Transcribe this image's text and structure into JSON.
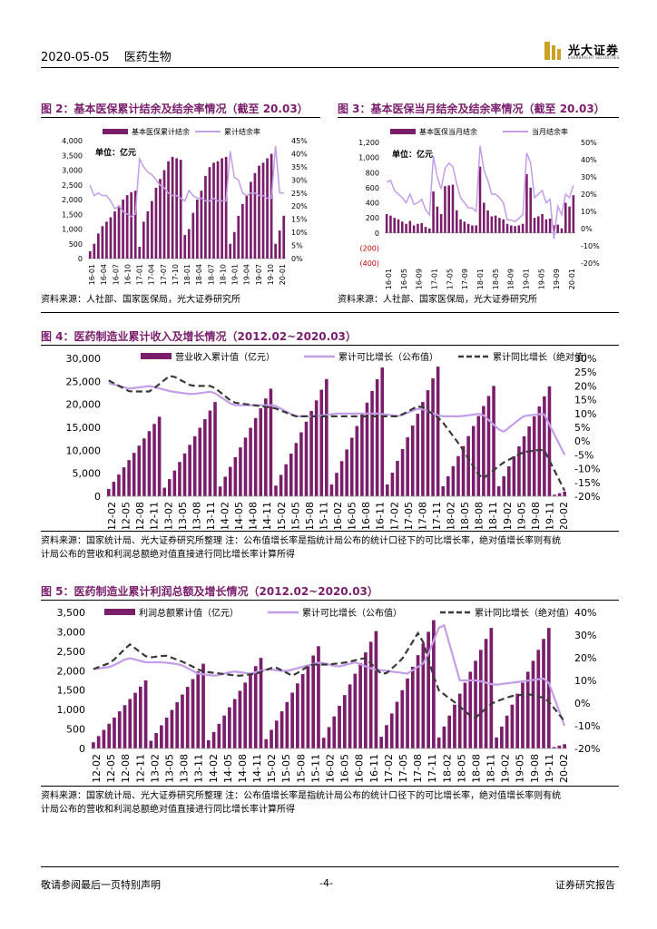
{
  "header": {
    "date": "2020-05-05",
    "sector": "医药生物"
  },
  "logo": {
    "name": "光大证券",
    "sub": "EVERBRIGHT SECURITIES"
  },
  "colors": {
    "bar": "#7a1e6c",
    "line1": "#c49ee8",
    "line2": "#3a3a3a",
    "title": "#7a1e6c"
  },
  "fig2": {
    "title": "图 2：基本医保累计结余及结余率情况（截至 20.03）",
    "legend": [
      "基本医保累计结余",
      "累计结余率"
    ],
    "unit": "单位：亿元",
    "source": "资料来源：人社部、国家医保局，光大证券研究所",
    "chart_data": {
      "type": "bar",
      "title": "基本医保累计结余及结余率情况",
      "yleft_ticks": [
        "4,000",
        "3,500",
        "3,000",
        "2,500",
        "2,000",
        "1,500",
        "1,000",
        "500",
        "0"
      ],
      "yright_ticks": [
        "45%",
        "40%",
        "35%",
        "30%",
        "25%",
        "20%",
        "15%",
        "10%",
        "5%",
        "0%"
      ],
      "xticks": [
        "16-01",
        "16-04",
        "16-07",
        "16-10",
        "17-01",
        "17-04",
        "17-07",
        "17-10",
        "18-01",
        "18-04",
        "18-07",
        "18-10",
        "19-01",
        "19-04",
        "19-07",
        "19-10",
        "20-01"
      ],
      "ylim_left": [
        0,
        4000
      ],
      "ylim_right": [
        0,
        45
      ],
      "series": [
        {
          "name": "基本医保累计结余",
          "values": [
            250,
            500,
            850,
            1100,
            1250,
            1400,
            1600,
            1800,
            2000,
            2150,
            2250,
            2300,
            400,
            1250,
            1600,
            1950,
            2400,
            2700,
            3000,
            3300,
            3450,
            3400,
            3350,
            800,
            1000,
            1550,
            2000,
            2300,
            2800,
            3100,
            3250,
            3300,
            3400,
            3450,
            500,
            900,
            1450,
            1850,
            2150,
            2600,
            2900,
            3150,
            3250,
            3400,
            3550,
            500,
            950,
            1450
          ]
        },
        {
          "name": "累计结余率",
          "values": [
            28,
            24,
            25,
            24,
            24,
            22,
            19,
            20,
            18,
            17,
            16,
            17,
            38,
            35,
            33,
            32,
            30,
            28,
            27,
            25,
            24,
            24,
            23,
            22,
            26,
            24,
            23,
            23,
            22,
            22,
            23,
            22,
            22,
            22,
            41,
            31,
            30,
            25,
            24,
            25,
            25,
            24,
            24,
            23,
            23,
            43,
            25,
            25
          ]
        }
      ]
    }
  },
  "fig3": {
    "title": "图 3：基本医保当月结余及结余率情况（截至 20.03）",
    "legend": [
      "基本医保当月结余",
      "当月结余率"
    ],
    "unit": "单位：亿元",
    "source": "资料来源：人社部、国家医保局，光大证券研究所",
    "chart_data": {
      "type": "bar",
      "title": "基本医保当月结余及结余率情况",
      "yleft_ticks": [
        "1,200",
        "1,000",
        "800",
        "600",
        "400",
        "200",
        "0",
        "(200)",
        "(400)"
      ],
      "yright_ticks": [
        "50%",
        "40%",
        "30%",
        "20%",
        "10%",
        "0%",
        "-10%",
        "-20%"
      ],
      "xticks": [
        "16-01",
        "16-05",
        "16-09",
        "17-01",
        "17-05",
        "17-09",
        "18-01",
        "18-05",
        "18-09",
        "19-01",
        "19-05",
        "19-09",
        "20-01"
      ],
      "ylim_left": [
        -400,
        1200
      ],
      "ylim_right": [
        -20,
        50
      ],
      "series": [
        {
          "name": "基本医保当月结余",
          "values": [
            250,
            230,
            200,
            180,
            150,
            120,
            160,
            100,
            120,
            130,
            80,
            60,
            550,
            350,
            250,
            620,
            630,
            640,
            300,
            180,
            150,
            120,
            100,
            100,
            880,
            400,
            300,
            220,
            230,
            200,
            180,
            120,
            100,
            90,
            100,
            120,
            780,
            600,
            200,
            220,
            250,
            180,
            190,
            100,
            110,
            60,
            400,
            350,
            500
          ]
        },
        {
          "name": "当月结余率",
          "values": [
            27,
            28,
            22,
            20,
            18,
            15,
            20,
            14,
            15,
            17,
            11,
            8,
            42,
            30,
            23,
            35,
            38,
            36,
            26,
            18,
            15,
            12,
            12,
            10,
            48,
            34,
            28,
            20,
            20,
            18,
            15,
            5,
            5,
            4,
            6,
            8,
            44,
            38,
            18,
            20,
            22,
            15,
            17,
            -6,
            13,
            8,
            20,
            18,
            25
          ]
        }
      ]
    }
  },
  "fig4": {
    "title": "图 4：医药制造业累计收入及增长情况（2012.02~2020.03）",
    "legend": [
      "营业收入累计值（亿元）",
      "累计可比增长（公布值）",
      "累计同比增长（绝对值）"
    ],
    "source_lines": [
      "资料来源：国家统计局、光大证券研究所整理 注：公布值增长率是指统计局公布的统计口径下的可比增长率，绝对值增长率则有统",
      "计局公布的营收和利润总额绝对值直接进行同比增长率计算所得"
    ],
    "chart_data": {
      "type": "bar",
      "yleft_ticks": [
        "30,000",
        "25,000",
        "20,000",
        "15,000",
        "10,000",
        "5,000",
        "0"
      ],
      "yright_ticks": [
        "30%",
        "25%",
        "20%",
        "15%",
        "10%",
        "5%",
        "0%",
        "-5%",
        "-10%",
        "-15%",
        "-20%"
      ],
      "xticks": [
        "12-02",
        "12-05",
        "12-08",
        "12-11",
        "13-02",
        "13-05",
        "13-08",
        "13-11",
        "14-02",
        "14-05",
        "14-08",
        "14-11",
        "15-02",
        "15-05",
        "15-08",
        "15-11",
        "16-02",
        "16-05",
        "16-08",
        "16-11",
        "17-02",
        "17-05",
        "17-08",
        "17-11",
        "18-02",
        "18-05",
        "18-08",
        "18-11",
        "19-02",
        "19-05",
        "19-08",
        "19-11",
        "20-02"
      ],
      "ylim_left": [
        0,
        30000
      ],
      "ylim_right": [
        -20,
        30
      ]
    }
  },
  "fig5": {
    "title": "图 5：医药制造业累计利润总额及增长情况（2012.02~2020.03）",
    "legend": [
      "利润总额累计值（亿元）",
      "累计可比增长（公布值）",
      "累计同比增长（绝对值）"
    ],
    "source_lines": [
      "资料来源：国家统计局、光大证券研究所整理 注：公布值增长率是指统计局公布的统计口径下的可比增长率，绝对值增长率则有统",
      "计局公布的营收和利润总额绝对值直接进行同比增长率计算所得"
    ],
    "chart_data": {
      "type": "bar",
      "yleft_ticks": [
        "3,500",
        "3,000",
        "2,500",
        "2,000",
        "1,500",
        "1,000",
        "500",
        "0"
      ],
      "yright_ticks": [
        "40%",
        "30%",
        "20%",
        "10%",
        "0%",
        "-10%",
        "-20%"
      ],
      "xticks": [
        "12-02",
        "12-05",
        "12-08",
        "12-11",
        "13-02",
        "13-05",
        "13-08",
        "13-11",
        "14-02",
        "14-05",
        "14-08",
        "14-11",
        "15-02",
        "15-05",
        "15-08",
        "15-11",
        "16-02",
        "16-05",
        "16-08",
        "16-11",
        "17-02",
        "17-05",
        "17-08",
        "17-11",
        "18-02",
        "18-05",
        "18-08",
        "18-11",
        "19-02",
        "19-05",
        "19-08",
        "19-11",
        "20-02"
      ],
      "ylim_left": [
        0,
        3500
      ],
      "ylim_right": [
        -20,
        40
      ]
    }
  },
  "footer": {
    "left": "敬请参阅最后一页特别声明",
    "center": "-4-",
    "right": "证券研究报告"
  }
}
